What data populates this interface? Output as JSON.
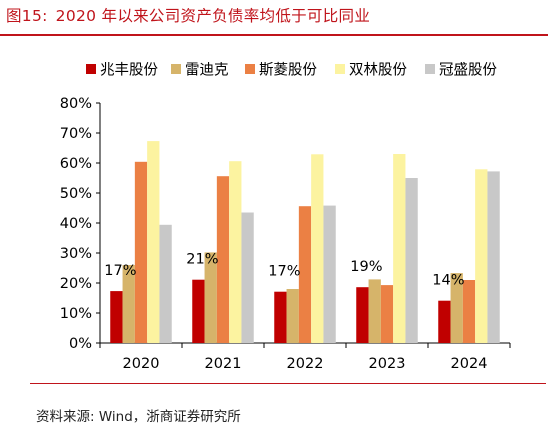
{
  "header": {
    "figure_label": "图15:",
    "title": "2020 年以来公司资产负债率均低于可比同业"
  },
  "footer": {
    "source": "资料来源:  Wind，浙商证券研究所"
  },
  "chart_data": {
    "type": "bar",
    "title": "",
    "xlabel": "",
    "ylabel": "",
    "categories": [
      "2020",
      "2021",
      "2022",
      "2023",
      "2024"
    ],
    "ylim": [
      0,
      80
    ],
    "yticks": [
      "0%",
      "10%",
      "20%",
      "30%",
      "40%",
      "50%",
      "60%",
      "70%",
      "80%"
    ],
    "grid": false,
    "legend_position": "top",
    "series": [
      {
        "name": "兆丰股份",
        "color": "#c00000",
        "values": [
          17.3,
          21.1,
          17.1,
          18.6,
          14.1
        ]
      },
      {
        "name": "雷迪克",
        "color": "#d6b46a",
        "values": [
          26.0,
          30.2,
          18.0,
          21.2,
          23.3
        ]
      },
      {
        "name": "斯菱股份",
        "color": "#eb8044",
        "values": [
          60.4,
          55.6,
          45.6,
          19.3,
          21.0
        ]
      },
      {
        "name": "双林股份",
        "color": "#fcf3a0",
        "values": [
          67.3,
          60.6,
          62.9,
          63.0,
          57.9
        ]
      },
      {
        "name": "冠盛股份",
        "color": "#c8c8c8",
        "values": [
          39.4,
          43.5,
          45.8,
          55.0,
          57.2
        ]
      }
    ],
    "data_labels": [
      "17%",
      "21%",
      "17%",
      "19%",
      "14%"
    ]
  }
}
